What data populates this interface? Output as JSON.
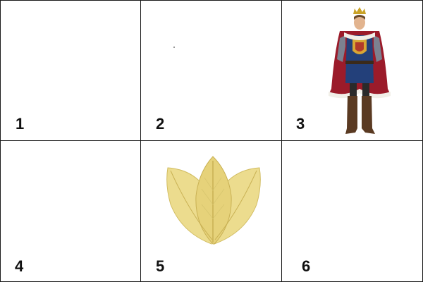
{
  "panels": [
    {
      "number": "1",
      "image": "blank"
    },
    {
      "number": "2",
      "image": "small-speck"
    },
    {
      "number": "3",
      "image": "king-costume"
    },
    {
      "number": "4",
      "image": "blank"
    },
    {
      "number": "5",
      "image": "skeleton-leaves"
    },
    {
      "number": "6",
      "image": "blank"
    }
  ],
  "colors": {
    "grid_line": "#1a1a1a",
    "background": "#ffffff",
    "cape": "#9b1b2a",
    "tunic": "#23407a",
    "leaf": "#e8d88a"
  }
}
